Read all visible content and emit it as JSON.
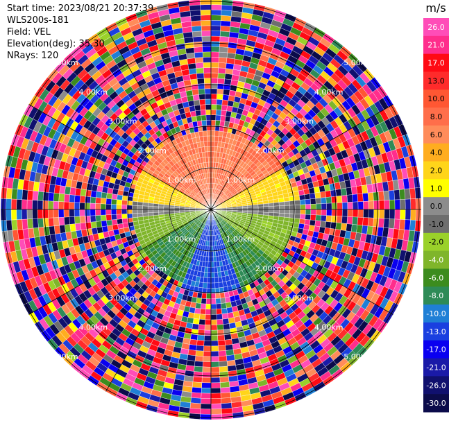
{
  "header": {
    "start_time": "Start time: 2023/08/21 20:37:39",
    "instrument": "WLS200s-181",
    "field": "Field: VEL",
    "elevation": "Elevation(deg): 35.30",
    "nrays": "NRays: 120"
  },
  "chart_data": {
    "type": "heatmap",
    "projection": "polar (PPI scan)",
    "field": "VEL",
    "n_rays": 120,
    "elevation_deg": 35.3,
    "range_rings_km": [
      "1.00km",
      "2.00km",
      "3.00km",
      "4.00km",
      "5.00km"
    ],
    "ring_label_positions": [
      {
        "ring": 0,
        "label": "1.00km"
      },
      {
        "ring": 1,
        "label": "2.00km"
      },
      {
        "ring": 2,
        "label": "3.00km"
      },
      {
        "ring": 3,
        "label": "4.00km"
      },
      {
        "ring": 4,
        "label": "5.00km"
      }
    ],
    "colorbar": {
      "unit": "m/s",
      "ticks": [
        "26.0",
        "21.0",
        "17.0",
        "13.0",
        "10.0",
        "8.0",
        "6.0",
        "4.0",
        "2.0",
        "1.0",
        "0.0",
        "-1.0",
        "-2.0",
        "-4.0",
        "-6.0",
        "-8.0",
        "-10.0",
        "-13.0",
        "-17.0",
        "-21.0",
        "-26.0",
        "-30.0"
      ],
      "bins": [
        {
          "min": 26,
          "max": 30,
          "color": "#ff4db8"
        },
        {
          "min": 21,
          "max": 26,
          "color": "#ff2d8c"
        },
        {
          "min": 17,
          "max": 21,
          "color": "#ff0a14"
        },
        {
          "min": 13,
          "max": 17,
          "color": "#ff2b2b"
        },
        {
          "min": 10,
          "max": 13,
          "color": "#ff5733"
        },
        {
          "min": 8,
          "max": 10,
          "color": "#ff6e4a"
        },
        {
          "min": 6,
          "max": 8,
          "color": "#ff8c5a"
        },
        {
          "min": 4,
          "max": 6,
          "color": "#ffad1f"
        },
        {
          "min": 2,
          "max": 4,
          "color": "#ffd51a"
        },
        {
          "min": 1,
          "max": 2,
          "color": "#ffff00"
        },
        {
          "min": 0,
          "max": 1,
          "color": "#8c8c8c"
        },
        {
          "min": -1,
          "max": 0,
          "color": "#6e6e6e"
        },
        {
          "min": -2,
          "max": -1,
          "color": "#9ad12a"
        },
        {
          "min": -4,
          "max": -2,
          "color": "#7fb52a"
        },
        {
          "min": -6,
          "max": -4,
          "color": "#3c8c1e"
        },
        {
          "min": -8,
          "max": -6,
          "color": "#2e8b57"
        },
        {
          "min": -10,
          "max": -8,
          "color": "#1f7fd6"
        },
        {
          "min": -13,
          "max": -10,
          "color": "#1a3fe0"
        },
        {
          "min": -17,
          "max": -13,
          "color": "#0a00f0"
        },
        {
          "min": -21,
          "max": -17,
          "color": "#1a1aa8"
        },
        {
          "min": -26,
          "max": -21,
          "color": "#10106e"
        },
        {
          "min": -30,
          "max": -26,
          "color": "#0b0b4a"
        }
      ]
    },
    "inner_region": {
      "description_sectors": [
        {
          "az_from": 300,
          "az_to": 60,
          "velocity_range": [
            6,
            10
          ]
        },
        {
          "az_from": 60,
          "az_to": 85,
          "velocity_range": [
            1,
            4
          ]
        },
        {
          "az_from": 275,
          "az_to": 300,
          "velocity_range": [
            1,
            4
          ]
        },
        {
          "az_from": 85,
          "az_to": 95,
          "velocity_range": [
            -1,
            1
          ]
        },
        {
          "az_from": 265,
          "az_to": 275,
          "velocity_range": [
            -1,
            1
          ]
        },
        {
          "az_from": 95,
          "az_to": 130,
          "velocity_range": [
            -4,
            -1
          ]
        },
        {
          "az_from": 130,
          "az_to": 160,
          "velocity_range": [
            -8,
            -4
          ]
        },
        {
          "az_from": 160,
          "az_to": 200,
          "velocity_range": [
            -13,
            -8
          ]
        },
        {
          "az_from": 200,
          "az_to": 240,
          "velocity_range": [
            -8,
            -4
          ]
        },
        {
          "az_from": 240,
          "az_to": 265,
          "velocity_range": [
            -4,
            -1
          ]
        }
      ]
    }
  }
}
